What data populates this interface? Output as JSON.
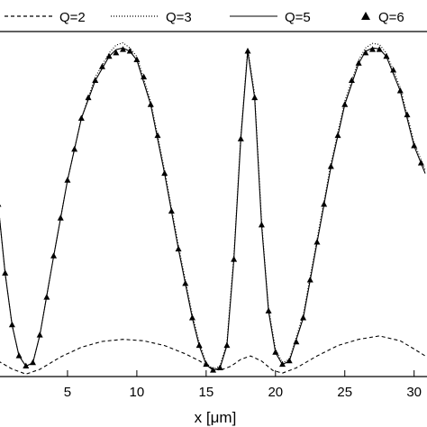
{
  "chart_data": {
    "type": "line",
    "xlabel": "x [μm]",
    "ylabel": "",
    "title": "",
    "xlim": [
      0,
      30.8
    ],
    "ylim": [
      0,
      1
    ],
    "x_ticks": [
      5,
      10,
      15,
      20,
      25,
      30
    ],
    "x_tick_labels": [
      "5",
      "10",
      "15",
      "20",
      "25",
      "30"
    ],
    "grid": false,
    "legend_position": "top",
    "series": [
      {
        "name": "Q=2",
        "style": "dashed",
        "color": "#000000",
        "x": [
          0,
          1.0,
          2.0,
          3.0,
          4.5,
          6.0,
          7.5,
          9.0,
          10.5,
          12.0,
          13.5,
          14.5,
          15.3,
          16.0,
          16.8,
          17.5,
          18.2,
          19.0,
          19.8,
          20.5,
          21.5,
          23.0,
          24.5,
          26.0,
          27.5,
          29.0,
          30.0,
          30.8
        ],
        "y": [
          0.045,
          0.022,
          0.007,
          0.021,
          0.057,
          0.085,
          0.102,
          0.108,
          0.104,
          0.09,
          0.066,
          0.046,
          0.026,
          0.018,
          0.03,
          0.05,
          0.06,
          0.045,
          0.018,
          0.01,
          0.025,
          0.06,
          0.09,
          0.108,
          0.118,
          0.104,
          0.08,
          0.06
        ]
      },
      {
        "name": "Q=3",
        "style": "dotted",
        "color": "#000000",
        "x": [
          0,
          0.5,
          1.0,
          1.5,
          2.0,
          2.5,
          3.0,
          4.0,
          5.0,
          6.0,
          7.0,
          8.0,
          8.5,
          9.0,
          9.5,
          10.0,
          11.0,
          12.0,
          13.0,
          14.0,
          14.5,
          15.0,
          15.5,
          16.0,
          16.5,
          17.0,
          17.5,
          18.0,
          18.5,
          19.0,
          19.5,
          20.0,
          20.5,
          21.0,
          22.0,
          23.0,
          24.0,
          25.0,
          26.0,
          26.5,
          27.0,
          27.5,
          28.0,
          29.0,
          30.0,
          30.8
        ],
        "y": [
          0.5,
          0.3,
          0.15,
          0.06,
          0.03,
          0.04,
          0.12,
          0.35,
          0.57,
          0.75,
          0.87,
          0.94,
          0.963,
          0.97,
          0.955,
          0.93,
          0.8,
          0.6,
          0.38,
          0.18,
          0.1,
          0.04,
          0.022,
          0.03,
          0.1,
          0.35,
          0.7,
          0.955,
          0.82,
          0.45,
          0.2,
          0.08,
          0.04,
          0.05,
          0.18,
          0.4,
          0.62,
          0.8,
          0.92,
          0.955,
          0.968,
          0.965,
          0.94,
          0.84,
          0.68,
          0.6
        ]
      },
      {
        "name": "Q=5",
        "style": "solid",
        "color": "#000000",
        "x": [
          0,
          0.5,
          1.0,
          1.5,
          2.0,
          2.5,
          3.0,
          4.0,
          5.0,
          6.0,
          7.0,
          8.0,
          8.5,
          9.0,
          9.5,
          10.0,
          11.0,
          12.0,
          13.0,
          14.0,
          14.5,
          15.0,
          15.5,
          16.0,
          16.5,
          17.0,
          17.5,
          18.0,
          18.5,
          19.0,
          19.5,
          20.0,
          20.5,
          21.0,
          22.0,
          23.0,
          24.0,
          25.0,
          26.0,
          26.5,
          27.0,
          27.5,
          28.0,
          29.0,
          30.0,
          30.8
        ],
        "y": [
          0.5,
          0.3,
          0.15,
          0.06,
          0.03,
          0.04,
          0.12,
          0.35,
          0.57,
          0.75,
          0.86,
          0.93,
          0.95,
          0.955,
          0.945,
          0.92,
          0.79,
          0.59,
          0.37,
          0.17,
          0.09,
          0.035,
          0.018,
          0.025,
          0.09,
          0.34,
          0.69,
          0.945,
          0.81,
          0.44,
          0.19,
          0.07,
          0.035,
          0.045,
          0.17,
          0.39,
          0.61,
          0.79,
          0.91,
          0.945,
          0.955,
          0.952,
          0.93,
          0.83,
          0.67,
          0.59
        ]
      },
      {
        "name": "Q=6",
        "style": "triangle-markers",
        "color": "#000000",
        "x": [
          0,
          0.5,
          1.0,
          1.5,
          2.0,
          2.5,
          3.0,
          3.5,
          4.0,
          4.5,
          5.0,
          5.5,
          6.0,
          6.5,
          7.0,
          7.5,
          8.0,
          8.5,
          9.0,
          9.5,
          10.0,
          10.5,
          11.0,
          11.5,
          12.0,
          12.5,
          13.0,
          13.5,
          14.0,
          14.5,
          15.0,
          15.5,
          16.0,
          16.5,
          17.0,
          17.5,
          18.0,
          18.5,
          19.0,
          19.5,
          20.0,
          20.5,
          21.0,
          21.5,
          22.0,
          22.5,
          23.0,
          23.5,
          24.0,
          24.5,
          25.0,
          25.5,
          26.0,
          26.5,
          27.0,
          27.5,
          28.0,
          28.5,
          29.0,
          29.5,
          30.0,
          30.5
        ],
        "y": [
          0.5,
          0.3,
          0.15,
          0.06,
          0.03,
          0.04,
          0.12,
          0.23,
          0.35,
          0.46,
          0.57,
          0.66,
          0.75,
          0.81,
          0.86,
          0.9,
          0.93,
          0.94,
          0.95,
          0.945,
          0.92,
          0.87,
          0.79,
          0.7,
          0.59,
          0.48,
          0.37,
          0.27,
          0.17,
          0.09,
          0.035,
          0.018,
          0.025,
          0.09,
          0.34,
          0.69,
          0.945,
          0.81,
          0.44,
          0.19,
          0.07,
          0.035,
          0.045,
          0.1,
          0.17,
          0.28,
          0.39,
          0.5,
          0.61,
          0.7,
          0.79,
          0.86,
          0.91,
          0.94,
          0.95,
          0.95,
          0.93,
          0.89,
          0.83,
          0.76,
          0.67,
          0.62
        ]
      }
    ]
  },
  "legend": {
    "items": [
      {
        "label": "Q=2"
      },
      {
        "label": "Q=3"
      },
      {
        "label": "Q=5"
      },
      {
        "label": "Q=6"
      }
    ]
  }
}
